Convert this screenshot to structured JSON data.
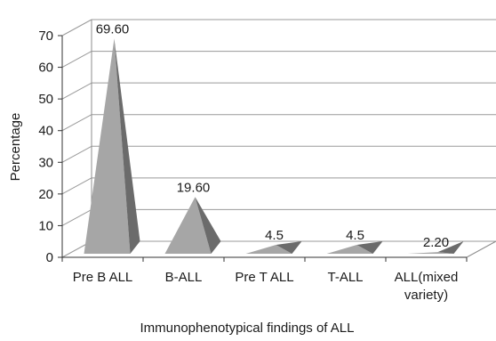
{
  "chart_data": {
    "type": "bar",
    "categories": [
      "Pre B ALL",
      "B-ALL",
      "Pre T ALL",
      "T-ALL",
      "ALL(mixed variety)"
    ],
    "category_lines": [
      [
        "Pre B ALL"
      ],
      [
        "B-ALL"
      ],
      [
        "Pre T ALL"
      ],
      [
        "T-ALL"
      ],
      [
        "ALL(mixed",
        "variety)"
      ]
    ],
    "values": [
      69.6,
      19.6,
      4.5,
      4.5,
      2.2
    ],
    "data_labels": [
      "69.60",
      "19.60",
      "4.5",
      "4.5",
      "2.20"
    ],
    "xlabel": "Immunophenotypical findings of ALL",
    "ylabel": "Percentage",
    "ylim": [
      0,
      70
    ],
    "yticks": [
      0,
      10,
      20,
      30,
      40,
      50,
      60,
      70
    ],
    "grid": true,
    "style": "3d-pyramid",
    "colors": {
      "front": "#a6a6a6",
      "side": "#6b6b6b",
      "grid": "#9a9a9a",
      "floor": "#8c8c8c"
    }
  }
}
